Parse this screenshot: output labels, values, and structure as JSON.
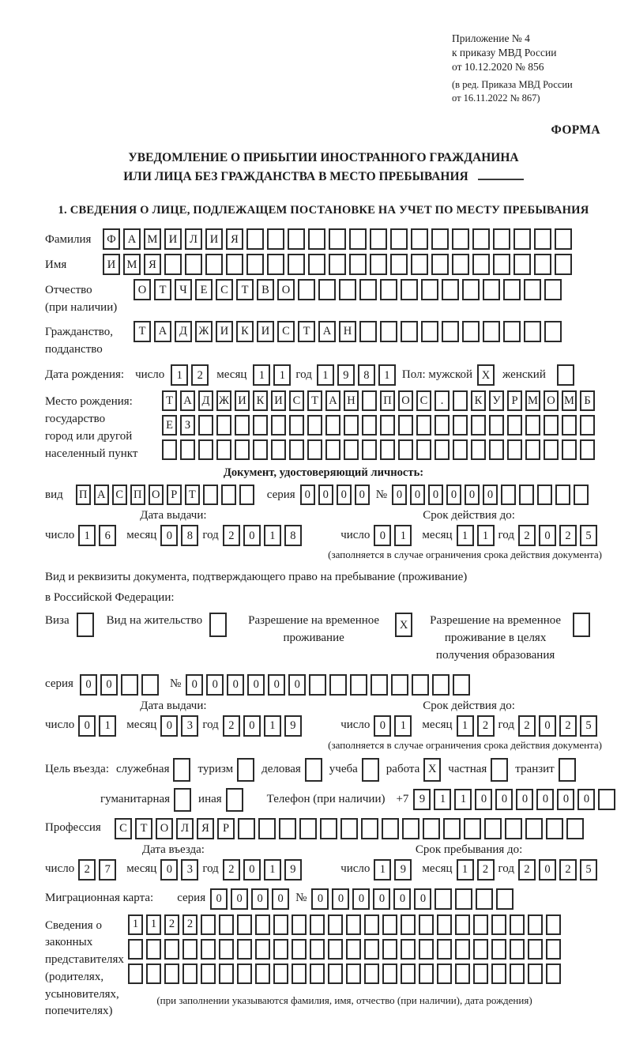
{
  "header": {
    "line1": "Приложение № 4",
    "line2": "к приказу МВД России",
    "line3": "от 10.12.2020 № 856",
    "line4": "(в ред. Приказа МВД России",
    "line5": "от 16.11.2022 № 867)",
    "forma": "ФОРМА"
  },
  "title": {
    "line1": "УВЕДОМЛЕНИЕ О ПРИБЫТИИ ИНОСТРАННОГО ГРАЖДАНИНА",
    "line2": "ИЛИ ЛИЦА БЕЗ ГРАЖДАНСТВА В МЕСТО ПРЕБЫВАНИЯ"
  },
  "section_heading": "1. СВЕДЕНИЯ О ЛИЦЕ, ПОДЛЕЖАЩЕМ ПОСТАНОВКЕ НА УЧЕТ ПО МЕСТУ ПРЕБЫВАНИЯ",
  "surname": {
    "label": "Фамилия",
    "cells": {
      "value": "ФАМИЛИЯ",
      "length": 23
    }
  },
  "firstname": {
    "label": "Имя",
    "cells": {
      "value": "ИМЯ",
      "length": 23
    }
  },
  "patronymic": {
    "label_line1": "Отчество",
    "label_line2": "(при наличии)",
    "cells": {
      "value": "ОТЧЕСТВО",
      "length": 21
    }
  },
  "citizenship": {
    "label_line1": "Гражданство,",
    "label_line2": "подданство",
    "cells": {
      "value": "ТАДЖИКИСТАН",
      "length": 21
    }
  },
  "birth_date": {
    "label": "Дата рождения:",
    "day_label": "число",
    "day": {
      "value": "12",
      "length": 2
    },
    "month_label": "месяц",
    "month": {
      "value": "11",
      "length": 2
    },
    "year_label": "год",
    "year": {
      "value": "1981",
      "length": 4
    },
    "sex_label": "Пол: мужской",
    "male": {
      "value": "X",
      "length": 1
    },
    "female_label": "женский",
    "female": {
      "value": "",
      "length": 1
    }
  },
  "birth_place": {
    "label_line1": "Место рождения:",
    "label_line2": "государство",
    "label_line3": "город или другой",
    "label_line4": "населенный пункт",
    "row1": {
      "value": "ТАДЖИКИСТАН ПОС. КУРМОМБ",
      "length": 24
    },
    "row2": {
      "value": "ЕЗ",
      "length": 24
    },
    "row3": {
      "value": "",
      "length": 24
    }
  },
  "identity_doc": {
    "heading": "Документ, удостоверяющий личность:",
    "type_label": "вид",
    "type": {
      "value": "ПАСПОРТ",
      "length": 10
    },
    "series_label": "серия",
    "series": {
      "value": "0000",
      "length": 4
    },
    "number_label": "№",
    "number": {
      "value": "000000",
      "length": 11
    },
    "issue": {
      "heading": "Дата выдачи:",
      "day_label": "число",
      "day": {
        "value": "16",
        "length": 2
      },
      "month_label": "месяц",
      "month": {
        "value": "08",
        "length": 2
      },
      "year_label": "год",
      "year": {
        "value": "2018",
        "length": 4
      }
    },
    "valid": {
      "heading": "Срок действия до:",
      "day_label": "число",
      "day": {
        "value": "01",
        "length": 2
      },
      "month_label": "месяц",
      "month": {
        "value": "11",
        "length": 2
      },
      "year_label": "год",
      "year": {
        "value": "2025",
        "length": 4
      },
      "note": "(заполняется в случае ограничения срока действия документа)"
    }
  },
  "residence_doc": {
    "intro_line1": "Вид и реквизиты документа, подтверждающего право на пребывание (проживание)",
    "intro_line2": "в Российской Федерации:",
    "options": [
      {
        "label": "Виза",
        "cells": {
          "value": "",
          "length": 1
        }
      },
      {
        "label": "Вид на жительство",
        "cells": {
          "value": "",
          "length": 1
        }
      },
      {
        "label": "Разрешение на временное проживание",
        "cells": {
          "value": "X",
          "length": 1
        }
      },
      {
        "label": "Разрешение на временное проживание в целях получения образования",
        "cells": {
          "value": "",
          "length": 1
        }
      }
    ],
    "series_label": "серия",
    "series": {
      "value": "00",
      "length": 4
    },
    "number_label": "№",
    "number": {
      "value": "000000",
      "length": 14
    },
    "issue": {
      "heading": "Дата выдачи:",
      "day_label": "число",
      "day": {
        "value": "01",
        "length": 2
      },
      "month_label": "месяц",
      "month": {
        "value": "03",
        "length": 2
      },
      "year_label": "год",
      "year": {
        "value": "2019",
        "length": 4
      }
    },
    "valid": {
      "heading": "Срок действия до:",
      "day_label": "число",
      "day": {
        "value": "01",
        "length": 2
      },
      "month_label": "месяц",
      "month": {
        "value": "12",
        "length": 2
      },
      "year_label": "год",
      "year": {
        "value": "2025",
        "length": 4
      },
      "note": "(заполняется в случае ограничения срока действия документа)"
    }
  },
  "visit_purpose": {
    "label": "Цель въезда:",
    "row1": [
      {
        "label": "служебная",
        "cells": {
          "value": "",
          "length": 1
        }
      },
      {
        "label": "туризм",
        "cells": {
          "value": "",
          "length": 1
        }
      },
      {
        "label": "деловая",
        "cells": {
          "value": "",
          "length": 1
        }
      },
      {
        "label": "учеба",
        "cells": {
          "value": "",
          "length": 1
        }
      },
      {
        "label": "работа",
        "cells": {
          "value": "X",
          "length": 1
        }
      },
      {
        "label": "частная",
        "cells": {
          "value": "",
          "length": 1
        }
      },
      {
        "label": "транзит",
        "cells": {
          "value": "",
          "length": 1
        }
      }
    ],
    "row2": [
      {
        "label": "гуманитарная",
        "cells": {
          "value": "",
          "length": 1
        }
      },
      {
        "label": "иная",
        "cells": {
          "value": "",
          "length": 1
        }
      }
    ],
    "phone_label": "Телефон (при наличии)",
    "phone_prefix": "+7",
    "phone": {
      "value": "911000000",
      "length": 10
    }
  },
  "profession": {
    "label": "Профессия",
    "cells": {
      "value": "СТОЛЯР",
      "length": 23
    }
  },
  "entry_dates": {
    "issue": {
      "heading": "Дата въезда:",
      "day_label": "число",
      "day": {
        "value": "27",
        "length": 2
      },
      "month_label": "месяц",
      "month": {
        "value": "03",
        "length": 2
      },
      "year_label": "год",
      "year": {
        "value": "2019",
        "length": 4
      }
    },
    "valid": {
      "heading": "Срок пребывания до:",
      "day_label": "число",
      "day": {
        "value": "19",
        "length": 2
      },
      "month_label": "месяц",
      "month": {
        "value": "12",
        "length": 2
      },
      "year_label": "год",
      "year": {
        "value": "2025",
        "length": 4
      }
    }
  },
  "migration_card": {
    "label": "Миграционная карта:",
    "series_label": "серия",
    "series": {
      "value": "0000",
      "length": 4
    },
    "number_label": "№",
    "number": {
      "value": "000000",
      "length": 10
    }
  },
  "representatives": {
    "label_lines": [
      "Сведения о",
      "законных",
      "представителях",
      "(родителях,",
      "усыновителях,",
      "попечителях)"
    ],
    "row1": {
      "value": "1122",
      "length": 24
    },
    "row2": {
      "value": "",
      "length": 24
    },
    "row3": {
      "value": "",
      "length": 24
    },
    "note": "(при заполнении указываются фамилия, имя, отчество (при наличии), дата рождения)"
  }
}
